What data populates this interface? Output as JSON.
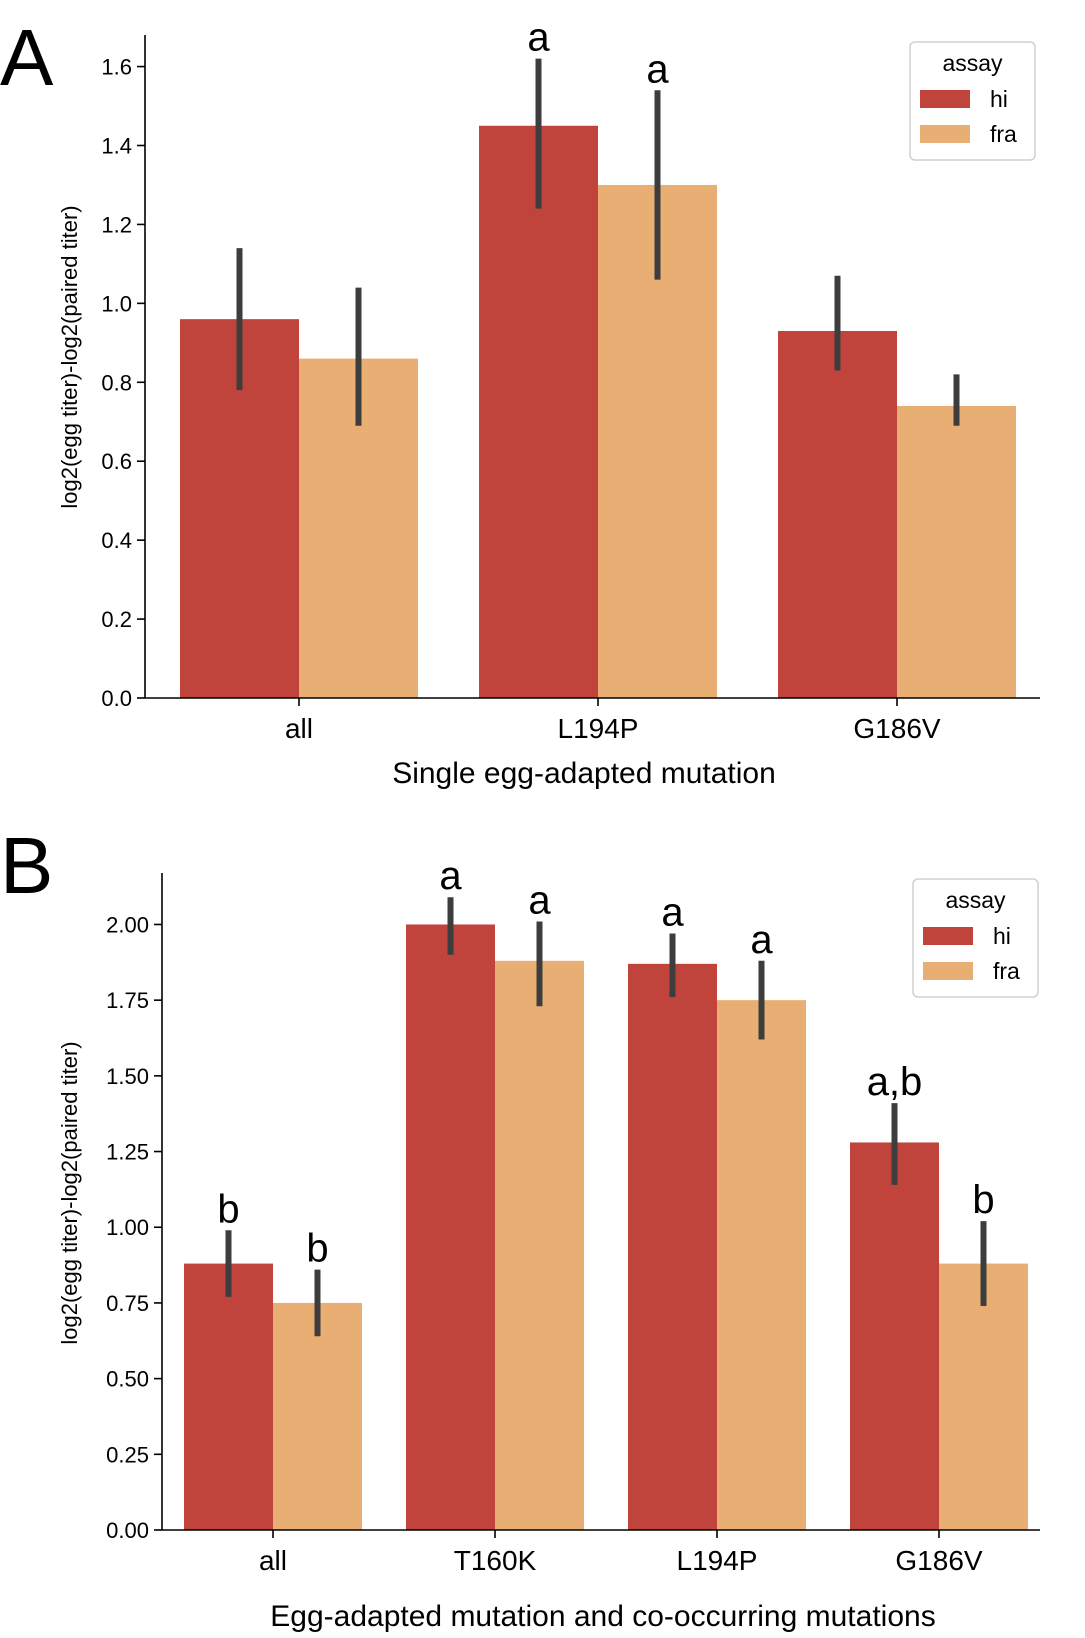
{
  "colors": {
    "hi": "#c1443c",
    "fra": "#e9ae74",
    "errorbar": "#3d3d3d",
    "axis": "#000000"
  },
  "chart_data": [
    {
      "type": "bar",
      "panel_label": "A",
      "xlabel": "Single egg-adapted mutation",
      "ylabel": "log2(egg titer)-log2(paired titer)",
      "categories": [
        "all",
        "L194P",
        "G186V"
      ],
      "ylim": [
        0,
        1.68
      ],
      "yticks": [
        "0.0",
        "0.2",
        "0.4",
        "0.6",
        "0.8",
        "1.0",
        "1.2",
        "1.4",
        "1.6"
      ],
      "legend": {
        "title": "assay",
        "position": "top-right"
      },
      "series": [
        {
          "name": "hi",
          "values": [
            0.96,
            1.45,
            0.93
          ],
          "err_low": [
            0.78,
            1.24,
            0.83
          ],
          "err_high": [
            1.14,
            1.62,
            1.07
          ],
          "annotations": [
            "",
            "a",
            ""
          ]
        },
        {
          "name": "fra",
          "values": [
            0.86,
            1.3,
            0.74
          ],
          "err_low": [
            0.69,
            1.06,
            0.69
          ],
          "err_high": [
            1.04,
            1.54,
            0.82
          ],
          "annotations": [
            "",
            "a",
            ""
          ]
        }
      ]
    },
    {
      "type": "bar",
      "panel_label": "B",
      "xlabel": "Egg-adapted mutation and co-occurring mutations",
      "ylabel": "log2(egg titer)-log2(paired titer)",
      "categories": [
        "all",
        "T160K",
        "L194P",
        "G186V"
      ],
      "ylim": [
        0,
        2.17
      ],
      "yticks": [
        "0.00",
        "0.25",
        "0.50",
        "0.75",
        "1.00",
        "1.25",
        "1.50",
        "1.75",
        "2.00"
      ],
      "legend": {
        "title": "assay",
        "position": "top-right"
      },
      "series": [
        {
          "name": "hi",
          "values": [
            0.88,
            2.0,
            1.87,
            1.28
          ],
          "err_low": [
            0.77,
            1.9,
            1.76,
            1.14
          ],
          "err_high": [
            0.99,
            2.09,
            1.97,
            1.41
          ],
          "annotations": [
            "b",
            "a",
            "a",
            "a,b"
          ]
        },
        {
          "name": "fra",
          "values": [
            0.75,
            1.88,
            1.75,
            0.88
          ],
          "err_low": [
            0.64,
            1.73,
            1.62,
            0.74
          ],
          "err_high": [
            0.86,
            2.01,
            1.88,
            1.02
          ],
          "annotations": [
            "b",
            "a",
            "a",
            "b"
          ]
        }
      ]
    }
  ]
}
